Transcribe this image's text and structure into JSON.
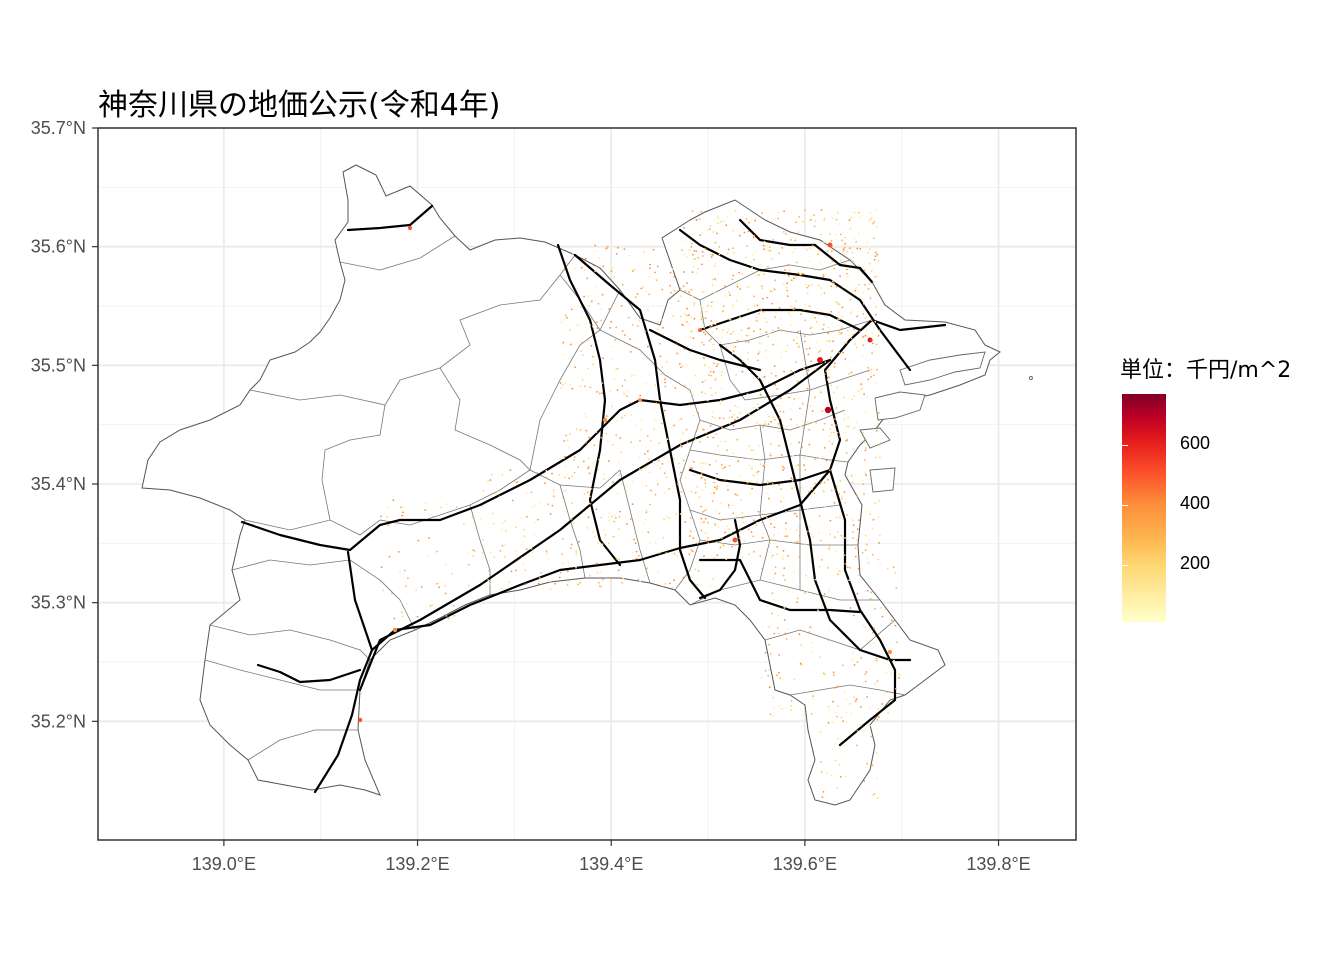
{
  "title": "神奈川県の地価公示(令和4年)",
  "chart_data": {
    "type": "map",
    "title": "神奈川県の地価公示(令和4年)",
    "x_axis": {
      "range": [
        138.87,
        139.88
      ],
      "ticks": [
        139.0,
        139.2,
        139.4,
        139.6,
        139.8
      ],
      "tick_labels": [
        "139.0°E",
        "139.2°E",
        "139.4°E",
        "139.6°E",
        "139.8°E"
      ]
    },
    "y_axis": {
      "range": [
        35.1,
        35.7
      ],
      "ticks": [
        35.2,
        35.3,
        35.4,
        35.5,
        35.6,
        35.7
      ],
      "tick_labels": [
        "35.2°N",
        "35.3°N",
        "35.4°N",
        "35.5°N",
        "35.6°N",
        "35.7°N"
      ]
    },
    "grid": true,
    "legend": {
      "title": "単位：千円/m^2",
      "placement": "right",
      "range": [
        10,
        770
      ],
      "ticks": [
        200,
        400,
        600
      ],
      "tick_labels": [
        "200",
        "400",
        "600"
      ],
      "colors": [
        "#ffffcc",
        "#fed976",
        "#fd8d3c",
        "#e31a1c",
        "#800026"
      ]
    },
    "hotspots": [
      {
        "lon": 139.66,
        "lat": 35.52,
        "value": 600
      },
      {
        "lon": 139.62,
        "lat": 35.47,
        "value": 700
      },
      {
        "lon": 139.7,
        "lat": 35.53,
        "value": 500
      },
      {
        "lon": 139.4,
        "lat": 35.44,
        "value": 350
      },
      {
        "lon": 139.53,
        "lat": 35.33,
        "value": 350
      },
      {
        "lon": 139.14,
        "lat": 35.27,
        "value": 300
      },
      {
        "lon": 139.63,
        "lat": 35.58,
        "value": 450
      }
    ]
  }
}
